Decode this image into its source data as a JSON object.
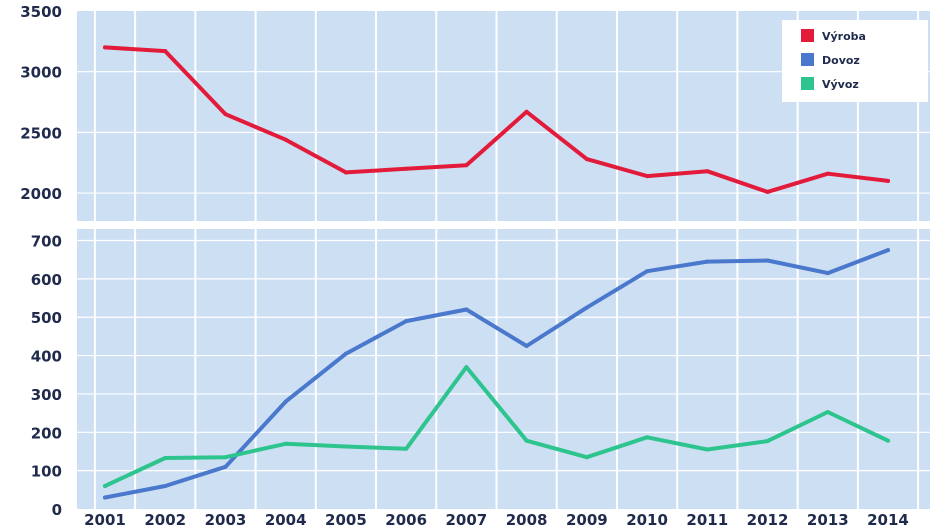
{
  "chart_data": {
    "type": "line",
    "x": [
      "2001",
      "2002",
      "2003",
      "2004",
      "2005",
      "2006",
      "2007",
      "2008",
      "2009",
      "2010",
      "2011",
      "2012",
      "2013",
      "2014"
    ],
    "panels": [
      {
        "name": "top",
        "ylim": [
          1770,
          3500
        ],
        "yticks": [
          2000,
          2500,
          3000,
          3500
        ],
        "series": [
          {
            "name": "Výroba",
            "color": "#e31b3b",
            "values": [
              3200,
              3170,
              2650,
              2440,
              2170,
              2200,
              2230,
              2670,
              2280,
              2140,
              2180,
              2010,
              2160,
              2100
            ]
          }
        ]
      },
      {
        "name": "bottom",
        "ylim": [
          0,
          730
        ],
        "yticks": [
          0,
          100,
          200,
          300,
          400,
          500,
          600,
          700
        ],
        "series": [
          {
            "name": "Dovoz",
            "color": "#4a78cc",
            "values": [
              30,
              60,
              110,
              280,
              405,
              490,
              520,
              425,
              525,
              620,
              645,
              648,
              615,
              675
            ]
          },
          {
            "name": "Vývoz",
            "color": "#2dc48e",
            "values": [
              60,
              133,
              135,
              170,
              163,
              157,
              370,
              178,
              135,
              187,
              155,
              177,
              253,
              178
            ]
          }
        ]
      }
    ],
    "legend": {
      "placement": "top-right",
      "items": [
        {
          "label": "Výroba",
          "color": "#e31b3b"
        },
        {
          "label": "Dovoz",
          "color": "#4a78cc"
        },
        {
          "label": "Vývoz",
          "color": "#2dc48e"
        }
      ]
    },
    "grid": true,
    "title": "",
    "xlabel": "",
    "ylabel": ""
  }
}
